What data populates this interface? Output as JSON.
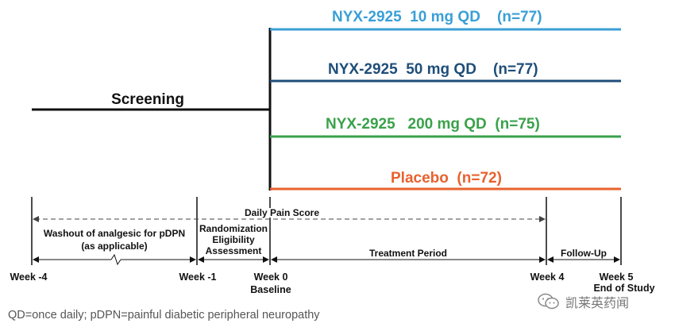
{
  "arms": [
    {
      "label": "NYX-2925  10 mg QD    (n=77)",
      "color": "#3a9fd6"
    },
    {
      "label": "NYX-2925  50 mg QD    (n=77)",
      "color": "#1f4e79"
    },
    {
      "label": "NYX-2925   200 mg QD  (n=75)",
      "color": "#3aa14a"
    },
    {
      "label": "Placebo  (n=72)",
      "color": "#e8622e"
    }
  ],
  "screening_label": "Screening",
  "daily_pain_score": "Daily Pain Score",
  "washout": {
    "line1": "Washout of analgesic for pDPN",
    "line2": "(as applicable)"
  },
  "randomization": {
    "line1": "Randomization",
    "line2": "Eligibility",
    "line3": "Assessment"
  },
  "treatment_period": "Treatment Period",
  "follow_up": "Follow-Up",
  "weeks": {
    "w_neg4": "Week -4",
    "w_neg1": "Week -1",
    "w0": "Week 0",
    "w0_sub": "Baseline",
    "w4": "Week 4",
    "w5": "Week 5",
    "w5_sub": "End of Study"
  },
  "footnote": "QD=once daily; pDPN=painful diabetic peripheral neuropathy",
  "watermark": {
    "text": "凯莱英药闻",
    "icon": "wechat-icon"
  }
}
